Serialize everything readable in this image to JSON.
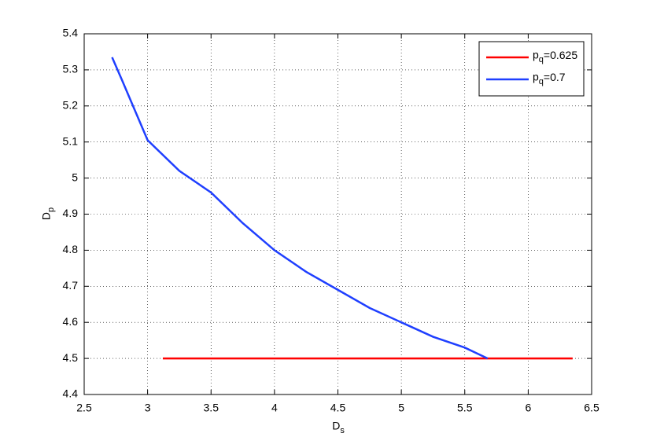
{
  "chart_data": {
    "type": "line",
    "xlabel": "D_s",
    "ylabel": "D_p",
    "series": [
      {
        "name": "p_q=0.625",
        "color": "#ff0000",
        "x": [
          3.12,
          6.35
        ],
        "values": [
          4.5,
          4.5
        ]
      },
      {
        "name": "p_q=0.7",
        "color": "#1f3fff",
        "x": [
          2.72,
          2.8,
          3.0,
          3.25,
          3.5,
          3.75,
          4.0,
          4.25,
          4.5,
          4.75,
          5.0,
          5.25,
          5.5,
          5.68
        ],
        "values": [
          5.335,
          5.27,
          5.105,
          5.02,
          4.96,
          4.875,
          4.8,
          4.74,
          4.69,
          4.64,
          4.6,
          4.56,
          4.53,
          4.5
        ]
      }
    ],
    "xlim": [
      2.5,
      6.5
    ],
    "xticks": [
      2.5,
      3,
      3.5,
      4,
      4.5,
      5,
      5.5,
      6,
      6.5
    ],
    "ylim": [
      4.4,
      5.4
    ],
    "yticks": [
      4.4,
      4.5,
      4.6,
      4.7,
      4.8,
      4.9,
      5,
      5.1,
      5.2,
      5.3,
      5.4
    ],
    "grid": true,
    "legend": "upper-right"
  }
}
